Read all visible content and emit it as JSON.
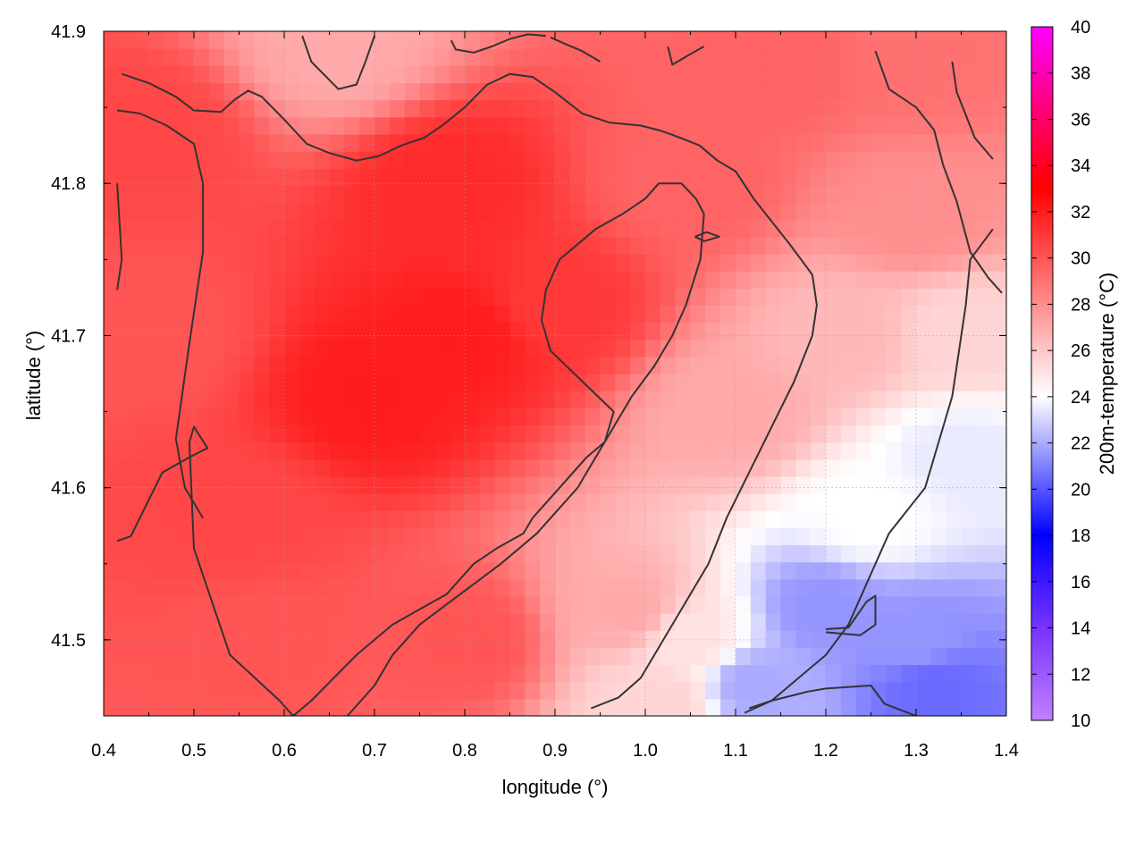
{
  "chart_data": {
    "type": "heatmap",
    "xlabel": "longitude (°)",
    "ylabel": "latitude (°)",
    "colorbar_label": "200m-temperature (°C)",
    "xlim": [
      0.4,
      1.4
    ],
    "ylim": [
      41.45,
      41.9
    ],
    "xticks": [
      "0.4",
      "0.5",
      "0.6",
      "0.7",
      "0.8",
      "0.9",
      "1.0",
      "1.1",
      "1.2",
      "1.3",
      "1.4"
    ],
    "yticks": [
      "41.5",
      "41.6",
      "41.7",
      "41.8",
      "41.9"
    ],
    "colorbar_range": [
      10,
      40
    ],
    "colorbar_ticks": [
      "10",
      "12",
      "14",
      "16",
      "18",
      "20",
      "22",
      "24",
      "26",
      "28",
      "30",
      "32",
      "34",
      "36",
      "38",
      "40"
    ],
    "colorscale": [
      {
        "value": 10,
        "color": "#c080ff"
      },
      {
        "value": 14,
        "color": "#7733ff"
      },
      {
        "value": 18,
        "color": "#0000ff"
      },
      {
        "value": 24,
        "color": "#ffffff"
      },
      {
        "value": 33,
        "color": "#ff0000"
      },
      {
        "value": 36,
        "color": "#ff0066"
      },
      {
        "value": 40,
        "color": "#ff00ff"
      }
    ],
    "grid": true,
    "field_anchors": [
      {
        "lon": 0.45,
        "lat": 41.7,
        "temp": 30.0
      },
      {
        "lon": 0.55,
        "lat": 41.58,
        "temp": 30.5
      },
      {
        "lon": 0.7,
        "lat": 41.66,
        "temp": 32.0
      },
      {
        "lon": 0.8,
        "lat": 41.7,
        "temp": 32.0
      },
      {
        "lon": 0.9,
        "lat": 41.72,
        "temp": 31.0
      },
      {
        "lon": 0.78,
        "lat": 41.8,
        "temp": 31.5
      },
      {
        "lon": 0.45,
        "lat": 41.83,
        "temp": 30.5
      },
      {
        "lon": 0.66,
        "lat": 41.89,
        "temp": 27.0
      },
      {
        "lon": 0.58,
        "lat": 41.5,
        "temp": 30.0
      },
      {
        "lon": 0.8,
        "lat": 41.5,
        "temp": 30.0
      },
      {
        "lon": 0.98,
        "lat": 41.52,
        "temp": 27.0
      },
      {
        "lon": 1.05,
        "lat": 41.5,
        "temp": 25.0
      },
      {
        "lon": 1.1,
        "lat": 41.65,
        "temp": 27.0
      },
      {
        "lon": 1.05,
        "lat": 41.8,
        "temp": 29.5
      },
      {
        "lon": 1.15,
        "lat": 41.88,
        "temp": 29.5
      },
      {
        "lon": 1.3,
        "lat": 41.88,
        "temp": 29.0
      },
      {
        "lon": 1.3,
        "lat": 41.78,
        "temp": 28.0
      },
      {
        "lon": 1.22,
        "lat": 41.7,
        "temp": 26.5
      },
      {
        "lon": 1.35,
        "lat": 41.7,
        "temp": 25.5
      },
      {
        "lon": 1.35,
        "lat": 41.62,
        "temp": 23.5
      },
      {
        "lon": 1.25,
        "lat": 41.58,
        "temp": 24.0
      },
      {
        "lon": 1.2,
        "lat": 41.52,
        "temp": 21.5
      },
      {
        "lon": 1.3,
        "lat": 41.5,
        "temp": 21.5
      },
      {
        "lon": 1.12,
        "lat": 41.47,
        "temp": 22.0
      },
      {
        "lon": 1.32,
        "lat": 41.47,
        "temp": 20.5
      },
      {
        "lon": 1.02,
        "lat": 41.46,
        "temp": 25.5
      }
    ],
    "contours": [
      {
        "lon": [
          0.415,
          0.43,
          0.465,
          0.495,
          0.515,
          0.5,
          0.495,
          0.5,
          0.54,
          0.595,
          0.61,
          0.63,
          0.68,
          0.72,
          0.75,
          0.78,
          0.81,
          0.835,
          0.865,
          0.875,
          0.905,
          0.935,
          0.955,
          0.965,
          0.93,
          0.895,
          0.885,
          0.89,
          0.905,
          0.925,
          0.945,
          0.975,
          1.0,
          1.015,
          1.04,
          1.056,
          1.065,
          1.061,
          1.045,
          1.03,
          1.01,
          0.985,
          0.955,
          0.925,
          0.88,
          0.84,
          0.795,
          0.75,
          0.72,
          0.7,
          0.67
        ],
        "lat": [
          41.565,
          41.568,
          41.61,
          41.62,
          41.626,
          41.64,
          41.63,
          41.56,
          41.49,
          41.46,
          41.45,
          41.46,
          41.49,
          41.51,
          41.52,
          41.53,
          41.55,
          41.56,
          41.57,
          41.58,
          41.6,
          41.62,
          41.63,
          41.65,
          41.67,
          41.69,
          41.71,
          41.73,
          41.75,
          41.76,
          41.77,
          41.78,
          41.79,
          41.8,
          41.8,
          41.79,
          41.78,
          41.75,
          41.72,
          41.7,
          41.68,
          41.66,
          41.63,
          41.6,
          41.57,
          41.55,
          41.53,
          41.51,
          41.49,
          41.47,
          41.45
        ]
      },
      {
        "lon": [
          0.415,
          0.44,
          0.47,
          0.5,
          0.51,
          0.51,
          0.495,
          0.48,
          0.485,
          0.49,
          0.51
        ],
        "lat": [
          41.848,
          41.846,
          41.838,
          41.826,
          41.8,
          41.755,
          41.695,
          41.632,
          41.616,
          41.6,
          41.58
        ]
      },
      {
        "lon": [
          0.415,
          0.418,
          0.42,
          0.415
        ],
        "lat": [
          41.8,
          41.77,
          41.75,
          41.73
        ]
      },
      {
        "lon": [
          0.42,
          0.45,
          0.48,
          0.5,
          0.53,
          0.545,
          0.56,
          0.575,
          0.6,
          0.625,
          0.65,
          0.68,
          0.705,
          0.73,
          0.755,
          0.775,
          0.8,
          0.825,
          0.85,
          0.875,
          0.9,
          0.93,
          0.96,
          0.995,
          1.015,
          1.03,
          1.06,
          1.08,
          1.1,
          1.12,
          1.14,
          1.16,
          1.175,
          1.185,
          1.19,
          1.185,
          1.165,
          1.14,
          1.115,
          1.09,
          1.07,
          1.05,
          1.03,
          1.01,
          0.995,
          0.97,
          0.94
        ],
        "lat": [
          41.872,
          41.866,
          41.857,
          41.848,
          41.847,
          41.855,
          41.861,
          41.857,
          41.842,
          41.826,
          41.82,
          41.815,
          41.818,
          41.825,
          41.83,
          41.838,
          41.85,
          41.865,
          41.872,
          41.87,
          41.86,
          41.846,
          41.84,
          41.838,
          41.835,
          41.832,
          41.825,
          41.815,
          41.808,
          41.79,
          41.775,
          41.76,
          41.748,
          41.74,
          41.72,
          41.7,
          41.67,
          41.64,
          41.61,
          41.58,
          41.55,
          41.53,
          41.51,
          41.49,
          41.475,
          41.462,
          41.455
        ]
      },
      {
        "lon": [
          0.62,
          0.63,
          0.66,
          0.68,
          0.69,
          0.7
        ],
        "lat": [
          41.897,
          41.88,
          41.862,
          41.865,
          41.88,
          41.897
        ]
      },
      {
        "lon": [
          0.785,
          0.79,
          0.81,
          0.83,
          0.85,
          0.87,
          0.89
        ],
        "lat": [
          41.894,
          41.888,
          41.886,
          41.89,
          41.895,
          41.898,
          41.897
        ]
      },
      {
        "lon": [
          0.895,
          0.91,
          0.93,
          0.95
        ],
        "lat": [
          41.896,
          41.892,
          41.887,
          41.88
        ]
      },
      {
        "lon": [
          1.025,
          1.03,
          1.05,
          1.065
        ],
        "lat": [
          41.89,
          41.878,
          41.885,
          41.89
        ]
      },
      {
        "lon": [
          1.255,
          1.27,
          1.3,
          1.32,
          1.33,
          1.345,
          1.36,
          1.38,
          1.395
        ],
        "lat": [
          41.887,
          41.862,
          41.85,
          41.835,
          41.812,
          41.788,
          41.755,
          41.738,
          41.728
        ]
      },
      {
        "lon": [
          1.34,
          1.345,
          1.355,
          1.365,
          1.385
        ],
        "lat": [
          41.88,
          41.86,
          41.845,
          41.83,
          41.816
        ]
      },
      {
        "lon": [
          1.11,
          1.14,
          1.17,
          1.2,
          1.225,
          1.24,
          1.255,
          1.27,
          1.29,
          1.31,
          1.32,
          1.33,
          1.34,
          1.345,
          1.355,
          1.36,
          1.385
        ],
        "lat": [
          41.452,
          41.46,
          41.475,
          41.49,
          41.51,
          41.53,
          41.55,
          41.57,
          41.585,
          41.6,
          41.62,
          41.64,
          41.66,
          41.68,
          41.72,
          41.75,
          41.77
        ]
      },
      {
        "lon": [
          1.2,
          1.225,
          1.245,
          1.255,
          1.255,
          1.238,
          1.2
        ],
        "lat": [
          41.507,
          41.508,
          41.525,
          41.529,
          41.51,
          41.503,
          41.505
        ]
      },
      {
        "lon": [
          1.115,
          1.14,
          1.18,
          1.2,
          1.25,
          1.265,
          1.3
        ],
        "lat": [
          41.455,
          41.46,
          41.466,
          41.468,
          41.47,
          41.458,
          41.45
        ]
      },
      {
        "lon": [
          1.055,
          1.068,
          1.082,
          1.065,
          1.055
        ],
        "lat": [
          41.765,
          41.768,
          41.765,
          41.762,
          41.765
        ]
      }
    ],
    "contour_color": "#333333"
  }
}
